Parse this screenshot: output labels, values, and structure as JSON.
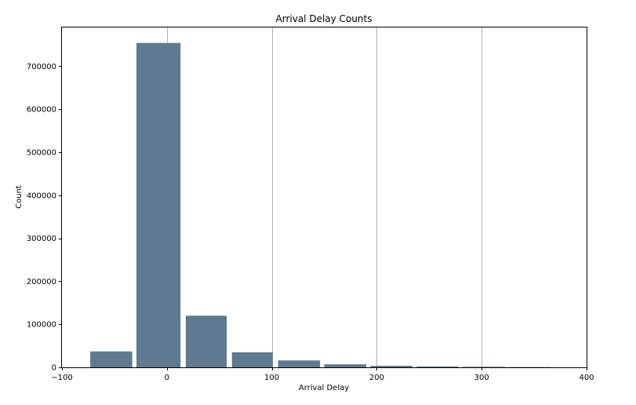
{
  "chart_data": {
    "type": "bar",
    "title": "Arrival Delay Counts",
    "xlabel": "Arrival Delay",
    "ylabel": "Count",
    "xlim": [
      -100,
      400
    ],
    "ylim": [
      0,
      790000
    ],
    "xticks": [
      -100,
      0,
      100,
      200,
      300,
      400
    ],
    "xtick_labels": [
      "−100",
      "0",
      "100",
      "200",
      "300",
      "400"
    ],
    "yticks": [
      0,
      100000,
      200000,
      300000,
      400000,
      500000,
      600000,
      700000
    ],
    "ytick_labels": [
      "0",
      "100000",
      "200000",
      "300000",
      "400000",
      "500000",
      "600000",
      "700000"
    ],
    "grid": "x",
    "bar_color": "#5e7a90",
    "bins": [
      {
        "start": -73,
        "end": -33,
        "count": 37000
      },
      {
        "start": -29,
        "end": 13,
        "count": 754000
      },
      {
        "start": 18,
        "end": 57,
        "count": 120000
      },
      {
        "start": 62,
        "end": 101,
        "count": 35000
      },
      {
        "start": 106,
        "end": 146,
        "count": 16000
      },
      {
        "start": 150,
        "end": 190,
        "count": 7000
      },
      {
        "start": 194,
        "end": 234,
        "count": 3500
      },
      {
        "start": 238,
        "end": 278,
        "count": 2000
      },
      {
        "start": 282,
        "end": 322,
        "count": 1200
      },
      {
        "start": 326,
        "end": 366,
        "count": 700
      }
    ]
  }
}
